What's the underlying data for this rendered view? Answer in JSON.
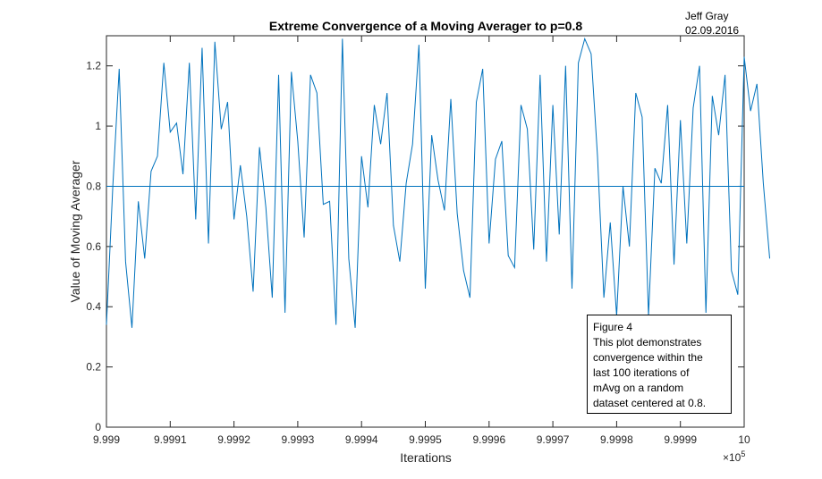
{
  "author": {
    "name": "Jeff Gray",
    "date": "02.09.2016"
  },
  "annotation": {
    "lines": [
      "Figure 4",
      "This plot demonstrates",
      "convergence within the",
      "last 100 iterations of",
      "mAvg on a random",
      "dataset centered at 0.8."
    ]
  },
  "colors": {
    "series": "#0072BD",
    "axis": "#262626"
  },
  "chart_data": {
    "type": "line",
    "title": "Extreme Convergence of a Moving Averager to p=0.8",
    "xlabel": "Iterations",
    "ylabel": "Value of Moving Averager",
    "x_exponent_base": "×10",
    "x_exponent_power": "5",
    "xlim": [
      999900,
      1000000
    ],
    "ylim": [
      0,
      1.3
    ],
    "grid": false,
    "legend": "none",
    "x_tick_values": [
      999900,
      999910,
      999920,
      999930,
      999940,
      999950,
      999960,
      999970,
      999980,
      999990,
      1000000
    ],
    "x_tick_labels": [
      "9.999",
      "9.9991",
      "9.9992",
      "9.9993",
      "9.9994",
      "9.9995",
      "9.9996",
      "9.9997",
      "9.9998",
      "9.9999",
      "10"
    ],
    "y_tick_values": [
      0,
      0.2,
      0.4,
      0.6,
      0.8,
      1.0,
      1.2
    ],
    "y_tick_labels": [
      "0",
      "0.2",
      "0.4",
      "0.6",
      "0.8",
      "1",
      "1.2"
    ],
    "reference_line": {
      "y": 0.8
    },
    "series": [
      {
        "x_start": 999900,
        "x_step": 1,
        "values": [
          0.34,
          0.8,
          1.19,
          0.55,
          0.33,
          0.75,
          0.56,
          0.85,
          0.9,
          1.21,
          0.98,
          1.01,
          0.84,
          1.21,
          0.69,
          1.26,
          0.61,
          1.28,
          0.99,
          1.08,
          0.69,
          0.87,
          0.7,
          0.45,
          0.93,
          0.73,
          0.43,
          1.17,
          0.38,
          1.18,
          0.95,
          0.63,
          1.17,
          1.11,
          0.74,
          0.75,
          0.34,
          1.29,
          0.56,
          0.33,
          0.9,
          0.73,
          1.07,
          0.94,
          1.11,
          0.67,
          0.55,
          0.81,
          0.94,
          1.27,
          0.46,
          0.97,
          0.82,
          0.72,
          1.09,
          0.71,
          0.52,
          0.43,
          1.08,
          1.19,
          0.61,
          0.89,
          0.95,
          0.57,
          0.53,
          1.07,
          0.99,
          0.59,
          1.17,
          0.55,
          1.07,
          0.64,
          1.2,
          0.46,
          1.21,
          1.29,
          1.24,
          0.9,
          0.43,
          0.68,
          0.37,
          0.8,
          0.6,
          1.11,
          1.03,
          0.37,
          0.86,
          0.81,
          1.07,
          0.54,
          1.02,
          0.61,
          1.06,
          1.2,
          0.38,
          1.1,
          0.97,
          1.17,
          0.52,
          0.44,
          1.23,
          1.05,
          1.14,
          0.81,
          0.56
        ]
      }
    ]
  }
}
